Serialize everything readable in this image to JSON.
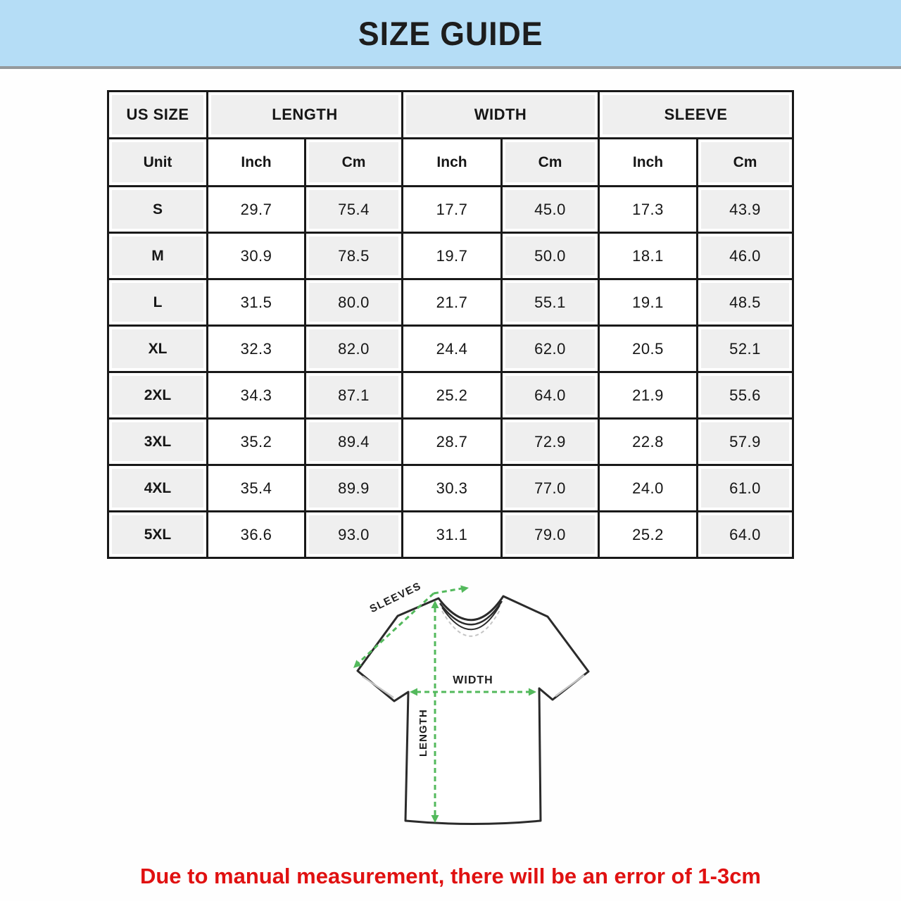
{
  "title": "SIZE GUIDE",
  "colors": {
    "banner_blue": "#b5ddf6",
    "divider_gray": "#95999c",
    "table_border_black": "#191919",
    "cell_gray": "#efefef",
    "cell_white": "#ffffff",
    "arrow_green": "#53b95c",
    "shirt_line": "#2b2b2b",
    "note_red": "#e01111"
  },
  "table": {
    "headers": [
      "US SIZE",
      "LENGTH",
      "WIDTH",
      "SLEEVE"
    ],
    "unit_row": [
      "Unit",
      "Inch",
      "Cm",
      "Inch",
      "Cm",
      "Inch",
      "Cm"
    ],
    "rows": [
      {
        "size": "S",
        "values": [
          "29.7",
          "75.4",
          "17.7",
          "45.0",
          "17.3",
          "43.9"
        ]
      },
      {
        "size": "M",
        "values": [
          "30.9",
          "78.5",
          "19.7",
          "50.0",
          "18.1",
          "46.0"
        ]
      },
      {
        "size": "L",
        "values": [
          "31.5",
          "80.0",
          "21.7",
          "55.1",
          "19.1",
          "48.5"
        ]
      },
      {
        "size": "XL",
        "values": [
          "32.3",
          "82.0",
          "24.4",
          "62.0",
          "20.5",
          "52.1"
        ]
      },
      {
        "size": "2XL",
        "values": [
          "34.3",
          "87.1",
          "25.2",
          "64.0",
          "21.9",
          "55.6"
        ]
      },
      {
        "size": "3XL",
        "values": [
          "35.2",
          "89.4",
          "28.7",
          "72.9",
          "22.8",
          "57.9"
        ]
      },
      {
        "size": "4XL",
        "values": [
          "35.4",
          "89.9",
          "30.3",
          "77.0",
          "24.0",
          "61.0"
        ]
      },
      {
        "size": "5XL",
        "values": [
          "36.6",
          "93.0",
          "31.1",
          "79.0",
          "25.2",
          "64.0"
        ]
      }
    ]
  },
  "diagram": {
    "sleeves_label": "SLEEVES",
    "width_label": "WIDTH",
    "length_label": "LENGTH"
  },
  "note": "Due to manual measurement, there will be an error of 1-3cm"
}
